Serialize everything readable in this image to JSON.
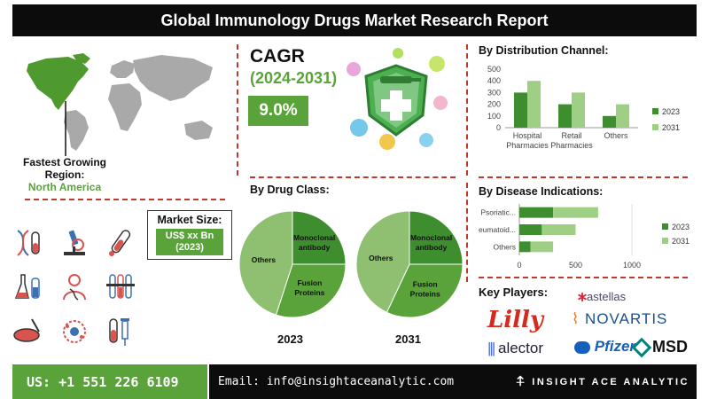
{
  "title": "Global Immunology Drugs Market Research Report",
  "map": {
    "fastest_label": "Fastest Growing Region:",
    "region": "North America"
  },
  "cagr": {
    "label": "CAGR",
    "years": "(2024-2031)",
    "value": "9.0%"
  },
  "market_size": {
    "label": "Market Size:",
    "value_line1": "US$ xx Bn",
    "value_line2": "(2023)"
  },
  "colors": {
    "accent": "#5aa33a",
    "dark_green": "#3e8e2f",
    "light_green": "#9fcf84",
    "pie_light": "#8fbf70",
    "divider": "#c0392b"
  },
  "icons": [
    "dna-test-tube-icon",
    "microscope-icon",
    "test-tube-blood-icon",
    "lab-flasks-icon",
    "doctor-dna-icon",
    "test-tubes-rack-icon",
    "petri-dish-icon",
    "virus-cells-icon",
    "blood-vial-syringe-icon"
  ],
  "drug_class": {
    "title": "By Drug Class:",
    "year_left": "2023",
    "year_right": "2031"
  },
  "distribution": {
    "title": "By Distribution Channel:"
  },
  "disease": {
    "title": "By Disease Indications:"
  },
  "key_players": {
    "title": "Key Players:",
    "logos": [
      "astellas",
      "Lilly",
      "NOVARTIS",
      "alector",
      "Pfizer",
      "MSD"
    ]
  },
  "footer": {
    "phone": "US: +1 551 226 6109",
    "email": "Email: info@insightaceanalytic.com",
    "brand": "INSIGHT ACE ANALYTIC"
  },
  "chart_data": [
    {
      "id": "distribution",
      "type": "bar",
      "categories": [
        "Hospital Pharmacies",
        "Retail Pharmacies",
        "Others"
      ],
      "category_lines": [
        [
          "Hospital",
          "Pharmacies"
        ],
        [
          "Retail",
          "Pharmacies"
        ],
        [
          "Others"
        ]
      ],
      "series": [
        {
          "name": "2023",
          "values": [
            300,
            200,
            100
          ]
        },
        {
          "name": "2031",
          "values": [
            400,
            300,
            200
          ]
        }
      ],
      "ylim": [
        0,
        500
      ],
      "yticks": [
        0,
        100,
        200,
        300,
        400,
        500
      ],
      "legend": "right"
    },
    {
      "id": "disease",
      "type": "bar",
      "orientation": "horizontal",
      "stacked": true,
      "categories": [
        "Psoriatic...",
        "Rheumatoid...",
        "Others"
      ],
      "series": [
        {
          "name": "2023",
          "values": [
            300,
            200,
            100
          ]
        },
        {
          "name": "2031",
          "values": [
            400,
            300,
            200
          ]
        }
      ],
      "xlim": [
        0,
        1000
      ],
      "xticks": [
        0,
        500,
        1000
      ],
      "legend": "right"
    },
    {
      "id": "drug-class-2023",
      "type": "pie",
      "labels": [
        "Monoclonal antibody",
        "Fusion Proteins",
        "Others"
      ],
      "label_lines": [
        [
          "Monoclonal",
          "antibody"
        ],
        [
          "Fusion",
          "Proteins"
        ],
        [
          "Others"
        ]
      ],
      "values": [
        25,
        30,
        45
      ]
    },
    {
      "id": "drug-class-2031",
      "type": "pie",
      "labels": [
        "Monoclonal antibody",
        "Fusion Proteins",
        "Others"
      ],
      "label_lines": [
        [
          "Monoclonal",
          "antibody"
        ],
        [
          "Fusion",
          "Proteins"
        ],
        [
          "Others"
        ]
      ],
      "values": [
        25,
        32,
        43
      ]
    }
  ]
}
